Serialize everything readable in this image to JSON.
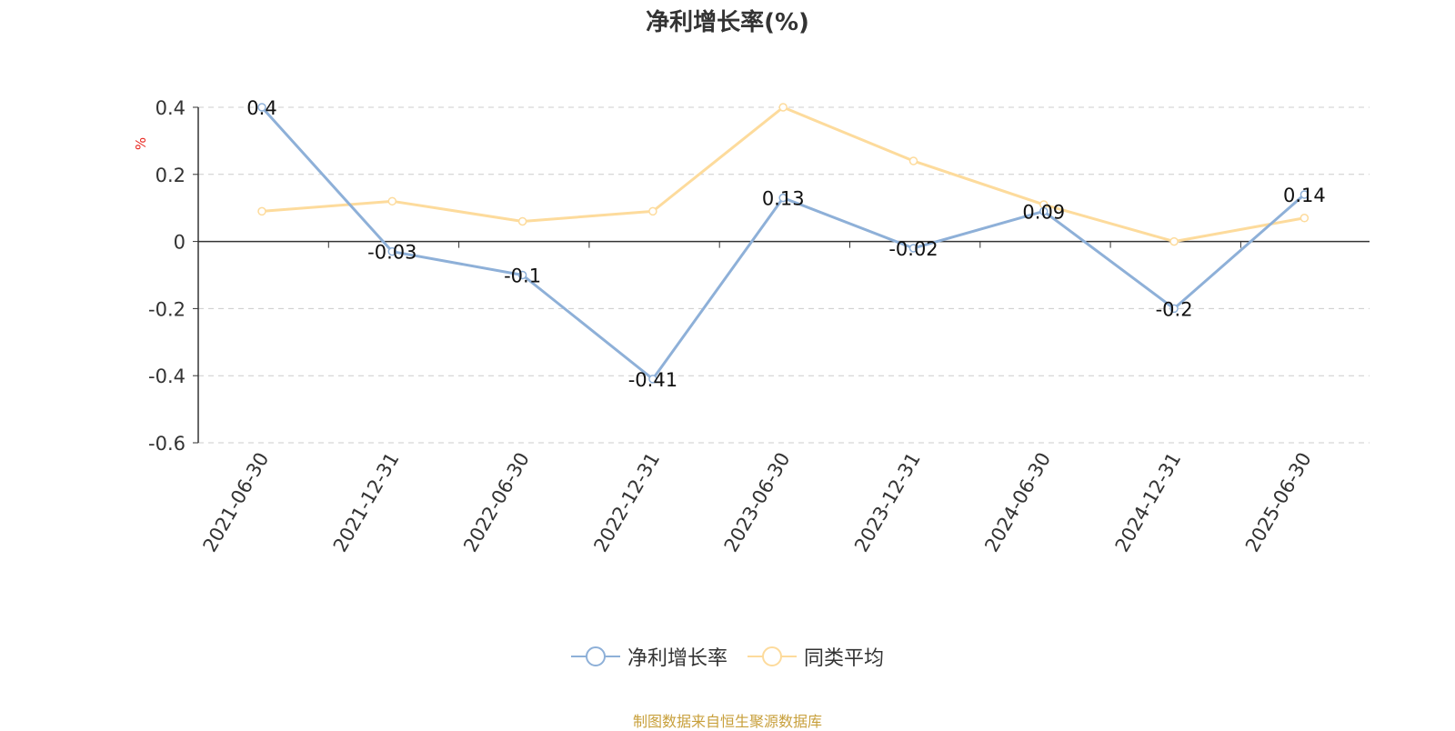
{
  "chart_data": {
    "type": "line",
    "title": "净利增长率(%)",
    "ylabel": "%",
    "xlabel": "",
    "categories": [
      "2021-06-30",
      "2021-12-31",
      "2022-06-30",
      "2022-12-31",
      "2023-06-30",
      "2023-12-31",
      "2024-06-30",
      "2024-12-31",
      "2025-06-30"
    ],
    "ylim": [
      -0.6,
      0.4
    ],
    "yticks": [
      "0.4",
      "0.2",
      "0",
      "-0.2",
      "-0.4",
      "-0.6"
    ],
    "grid": true,
    "legend_position": "bottom",
    "series": [
      {
        "name": "净利增长率",
        "values": [
          0.4,
          -0.03,
          -0.1,
          -0.41,
          0.13,
          -0.02,
          0.09,
          -0.2,
          0.14
        ],
        "labels": [
          "0.4",
          "-0.03",
          "-0.1",
          "-0.41",
          "0.13",
          "-0.02",
          "0.09",
          "-0.2",
          "0.14"
        ],
        "color": "#8eb0d8"
      },
      {
        "name": "同类平均",
        "values": [
          0.09,
          0.12,
          0.06,
          0.09,
          0.4,
          0.24,
          0.11,
          0.0,
          0.07
        ],
        "color": "#fddb9c"
      }
    ]
  },
  "legend": {
    "item1": "净利增长率",
    "item2": "同类平均"
  },
  "footer": {
    "source": "制图数据来自恒生聚源数据库"
  }
}
